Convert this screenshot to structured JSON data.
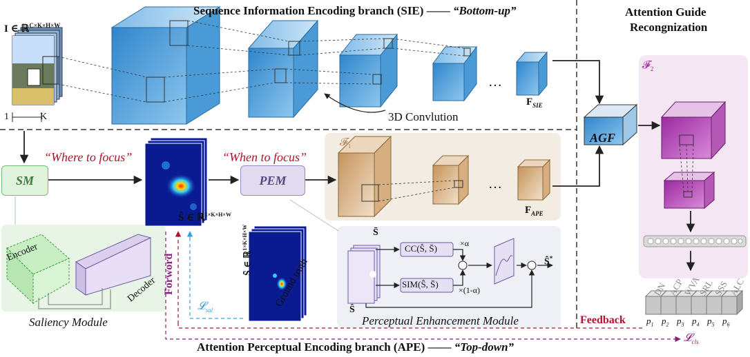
{
  "sie_title": "Sequence Information Encoding branch (SIE)",
  "sie_dash": "——",
  "sie_quote": "“Bottom-up”",
  "agr_line1": "Attention   Guide",
  "agr_line2": "Recongnization",
  "input_label": "I ∈ ℝ",
  "input_sup": "C×K×H×W",
  "axis_one": "1",
  "axis_k": "K",
  "conv_label": "3D Convlution",
  "f_sie_main": "F",
  "f_sie_sub": "SIE",
  "f_ape_main": "F",
  "f_ape_sub": "APE",
  "agf_label": "AGF",
  "f1_label": "𝓕",
  "f1_sub": "1",
  "f2_label": "𝓕",
  "f2_sub": "2",
  "where_label": "“Where to focus”",
  "when_label": "“When to focus”",
  "sm_label": "SM",
  "pem_label": "PEM",
  "s_hat_main": "Ŝ ∈ ℝ",
  "s_hat_sup": "1×K×H×W",
  "s_bar_main": "S̄ ∈ ℝ",
  "s_bar_sup": "1×K×H×W",
  "ground_truth": "Ground truth",
  "encoder": "Encoder",
  "decoder": "Decoder",
  "saliency_module": "Saliency Module",
  "pem_module": "Perceptual Enhancement Module",
  "forword": "Forword",
  "feedback": "Feedback",
  "l_sal": "𝓛",
  "l_sal_sub": "sal",
  "l_cls": "𝓛",
  "l_cls_sub": "cls",
  "ape_title": "Attention Perceptual Encoding branch (APE)",
  "ape_dash": "——",
  "ape_quote": "“Top-down”",
  "pem_inner": {
    "s_bar": "S̄",
    "s_hat": "Ŝ",
    "cc": "CC(Ŝ, S̄)",
    "sim": "SIM(Ŝ, S̄)",
    "alpha": "×α",
    "one_minus_alpha": "×(1-α)",
    "out": "Ŝ",
    "out_sup": "*",
    "otimes": "⊗"
  },
  "dots": "…",
  "classes": [
    "DN",
    "ACP",
    "WVA",
    "SRL",
    "SSS",
    "ALC"
  ],
  "probs": [
    "p",
    "p",
    "p",
    "p",
    "p",
    "p"
  ],
  "prob_subs": [
    "1",
    "2",
    "3",
    "4",
    "5",
    "6"
  ],
  "colors": {
    "sie_blue": "#3f8fd0",
    "ape_brown": "#b98a55",
    "agr_purple": "#9b2aa0",
    "red": "#b0122a",
    "purple": "#8a1c7c",
    "cyan": "#3aa0d8"
  }
}
